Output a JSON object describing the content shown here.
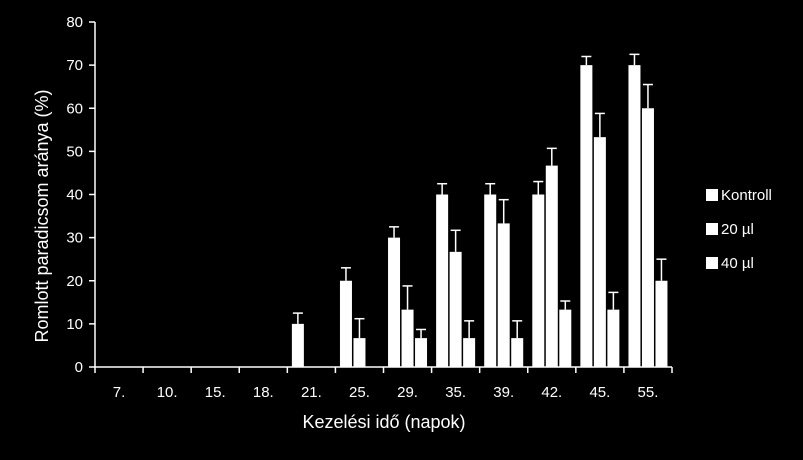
{
  "chart_data": {
    "type": "bar",
    "title": "",
    "xlabel": "Kezelési idő (napok)",
    "ylabel": "Romlott paradicsom aránya (%)",
    "ylim": [
      0,
      80
    ],
    "yticks": [
      0,
      10,
      20,
      30,
      40,
      50,
      60,
      70,
      80
    ],
    "grid": false,
    "legend_position": "right",
    "background": "#000000",
    "bar_color": "#ffffff",
    "categories": [
      "7.",
      "10.",
      "15.",
      "18.",
      "21.",
      "25.",
      "29.",
      "35.",
      "39.",
      "42.",
      "45.",
      "55."
    ],
    "series": [
      {
        "name": "Kontroll",
        "values": [
          0,
          0,
          0,
          0,
          10,
          20,
          30,
          40,
          40,
          40,
          70,
          70
        ],
        "errors": [
          0,
          0,
          0,
          0,
          2.5,
          3,
          2.5,
          2.5,
          2.5,
          3,
          2,
          2.5
        ]
      },
      {
        "name": "20 µl",
        "values": [
          0,
          0,
          0,
          0,
          0,
          6.7,
          13.3,
          26.7,
          33.3,
          46.7,
          53.3,
          60
        ],
        "errors": [
          0,
          0,
          0,
          0,
          0,
          4.5,
          5.5,
          5,
          5.5,
          4,
          5.5,
          5.5
        ]
      },
      {
        "name": "40 µl",
        "values": [
          0,
          0,
          0,
          0,
          0,
          0,
          6.7,
          6.7,
          6.7,
          13.3,
          13.3,
          20
        ],
        "errors": [
          0,
          0,
          0,
          0,
          0,
          0,
          2,
          4,
          4,
          2,
          4,
          5
        ]
      }
    ]
  }
}
